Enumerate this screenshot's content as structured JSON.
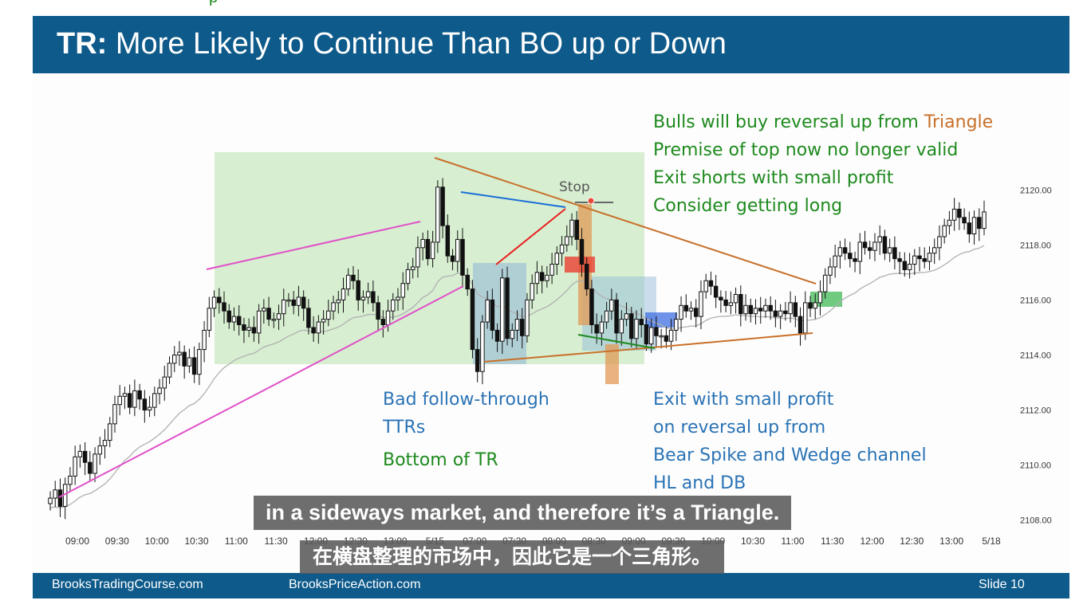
{
  "slide": {
    "title_bold": "TR:",
    "title_rest": " More Likely to Continue Than BO up or Down",
    "footer_left": "BrooksTradingCourse.com",
    "footer_mid": "BrooksPriceAction.com",
    "footer_right": "Slide  10",
    "colors": {
      "header": "#0e5a8a",
      "annotation_green": "#1e8a1e",
      "annotation_blue": "#2a73b5",
      "annotation_orange": "#c8702a"
    }
  },
  "annotations": {
    "top_right": {
      "line1_a": "Bulls will buy reversal up from ",
      "line1_b": "Triangle",
      "line2": "Premise of top now no longer valid",
      "line3": "Exit shorts with small profit",
      "line4": "Consider getting long"
    },
    "bottom_mid": {
      "line1": "Bad follow-through",
      "line2": "TTRs",
      "line3": "Bottom of TR"
    },
    "bottom_right": {
      "line1": "Exit with small profit",
      "line2": "on reversal up from",
      "line3": "Bear Spike and Wedge channel",
      "line4": "HL and DB"
    },
    "stop": "Stop"
  },
  "subtitles": {
    "en": "in a sideways market, and therefore it’s a Triangle.",
    "zh": "在横盘整理的市场中，因此它是一个三角形。"
  },
  "chart_data": {
    "type": "candlestick",
    "title": "",
    "y_ticks": [
      "2108.00",
      "2110.00",
      "2112.00",
      "2114.00",
      "2116.00",
      "2118.00",
      "2120.00"
    ],
    "ylim": [
      2107.5,
      2122.5
    ],
    "x_ticks": [
      "09:00",
      "09:30",
      "10:00",
      "10:30",
      "11:00",
      "11:30",
      "12:00",
      "12:30",
      "13:00",
      "5/15",
      "07:00",
      "07:30",
      "08:00",
      "08:30",
      "09:00",
      "09:30",
      "10:00",
      "10:30",
      "11:00",
      "11:30",
      "12:00",
      "12:30",
      "13:00",
      "5/18"
    ],
    "grid": false,
    "series": [
      {
        "closes": [
          2108.8,
          2109.1,
          2108.5,
          2109.3,
          2109.6,
          2110.3,
          2110.5,
          2110.1,
          2109.7,
          2110.4,
          2110.7,
          2110.9,
          2111.5,
          2112.2,
          2112.5,
          2112.6,
          2112.1,
          2112.7,
          2112.4,
          2112.0,
          2112.1,
          2112.6,
          2112.8,
          2113.2,
          2113.7,
          2114.0,
          2114.1,
          2113.6,
          2113.9,
          2113.3,
          2114.2,
          2114.9,
          2115.7,
          2116.1,
          2115.9,
          2115.6,
          2115.2,
          2115.4,
          2115.1,
          2114.9,
          2115.0,
          2114.8,
          2115.6,
          2115.7,
          2115.3,
          2115.3,
          2115.5,
          2116.0,
          2116.0,
          2115.8,
          2116.1,
          2115.7,
          2115.0,
          2114.8,
          2115.2,
          2115.3,
          2115.6,
          2115.9,
          2116.0,
          2116.4,
          2116.9,
          2116.7,
          2116.0,
          2116.1,
          2116.3,
          2115.9,
          2115.3,
          2115.1,
          2115.6,
          2116.0,
          2116.1,
          2116.6,
          2117.1,
          2117.2,
          2117.9,
          2118.2,
          2117.5,
          2118.1,
          2120.1,
          2118.7,
          2117.6,
          2117.4,
          2118.2,
          2116.9,
          2116.4,
          2114.2,
          2113.4,
          2115.2,
          2116.0,
          2114.9,
          2114.5,
          2116.8,
          2114.6,
          2114.9,
          2115.3,
          2114.7,
          2116.0,
          2116.6,
          2117.0,
          2116.7,
          2116.9,
          2117.3,
          2117.7,
          2118.0,
          2118.3,
          2118.9,
          2118.2,
          2117.3,
          2116.4,
          2115.1,
          2114.8,
          2115.2,
          2115.6,
          2116.0,
          2114.8,
          2115.3,
          2115.5,
          2114.6,
          2115.3,
          2115.1,
          2114.4,
          2115.0,
          2114.7,
          2114.7,
          2114.5,
          2114.9,
          2115.3,
          2115.8,
          2115.6,
          2115.7,
          2115.4,
          2116.3,
          2116.7,
          2116.5,
          2116.1,
          2116.0,
          2115.8,
          2115.9,
          2116.2,
          2115.5,
          2115.8,
          2115.5,
          2115.7,
          2115.6,
          2115.8,
          2115.6,
          2115.4,
          2115.6,
          2115.5,
          2115.9,
          2115.4,
          2114.8,
          2115.9,
          2115.7,
          2115.9,
          2116.3,
          2116.9,
          2117.2,
          2117.6,
          2117.9,
          2117.7,
          2117.5,
          2117.4,
          2118.1,
          2117.9,
          2117.8,
          2118.1,
          2118.3,
          2117.7,
          2117.9,
          2117.5,
          2117.4,
          2117.1,
          2117.3,
          2117.6,
          2117.5,
          2117.4,
          2117.7,
          2117.9,
          2118.3,
          2118.7,
          2118.9,
          2119.3,
          2119.0,
          2118.8,
          2118.4,
          2119.0,
          2118.6,
          2119.2
        ]
      }
    ]
  }
}
